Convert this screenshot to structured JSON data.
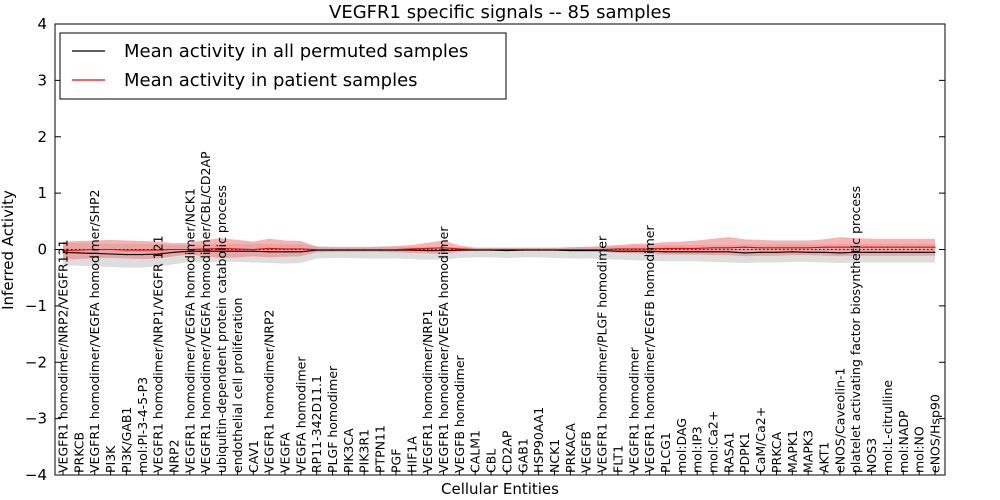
{
  "chart_data": {
    "type": "line",
    "title": "VEGFR1 specific signals -- 85 samples",
    "xlabel": "Cellular Entities",
    "ylabel": "Inferred Activity",
    "ylim": [
      -4,
      4
    ],
    "yticks": [
      -4,
      -3,
      -2,
      -1,
      0,
      1,
      2,
      3,
      4
    ],
    "reference_line": 0,
    "legend_position": "top-left",
    "categories": [
      "VEGFR1 homodimer/NRP2/VEGFR121",
      "PRKCB",
      "VEGFR1 homodimer/VEGFA homodimer/SHP2",
      "PI3K",
      "PI3K/GAB1",
      "mol:PI-3-4-5-P3",
      "VEGFR1 homodimer/NRP1/VEGFR 121",
      "NRP2",
      "VEGFR1 homodimer/VEGFA homodimer/NCK1",
      "VEGFR1 homodimer/VEGFA homodimer/CBL/CD2AP",
      "ubiquitin-dependent protein catabolic process",
      "endothelial cell proliferation",
      "CAV1",
      "VEGFR1 homodimer/NRP2",
      "VEGFA",
      "VEGFA homodimer",
      "RP11-342D11.1",
      "PLGF homodimer",
      "PIK3CA",
      "PIK3R1",
      "PTPN11",
      "PGF",
      "HIF1A",
      "VEGFR1 homodimer/NRP1",
      "VEGFR1 homodimer/VEGFA homodimer",
      "VEGFB homodimer",
      "CALM1",
      "CBL",
      "CD2AP",
      "GAB1",
      "HSP90AA1",
      "NCK1",
      "PRKACA",
      "VEGFB",
      "VEGFR1 homodimer/PLGF homodimer",
      "FLT1",
      "VEGFR1 homodimer",
      "VEGFR1 homodimer/VEGFB homodimer",
      "PLCG1",
      "mol:DAG",
      "mol:IP3",
      "mol:Ca2+",
      "RASA1",
      "PDPK1",
      "CaM/Ca2+",
      "PRKCA",
      "MAPK1",
      "MAPK3",
      "AKT1",
      "eNOS/Caveolin-1",
      "platelet activating factor biosynthetic process",
      "NOS3",
      "mol:L-citrulline",
      "mol:NADP",
      "mol:NO",
      "eNOS/Hsp90"
    ],
    "series": [
      {
        "name": "Mean activity in all permuted samples",
        "color": "#000000",
        "values": [
          -0.05,
          -0.06,
          -0.07,
          -0.08,
          -0.09,
          -0.09,
          -0.08,
          -0.05,
          -0.03,
          -0.03,
          -0.03,
          -0.03,
          -0.03,
          -0.04,
          -0.04,
          -0.04,
          -0.01,
          -0.01,
          -0.01,
          -0.01,
          -0.01,
          -0.01,
          -0.01,
          -0.02,
          -0.02,
          -0.01,
          -0.01,
          -0.01,
          -0.02,
          -0.01,
          -0.01,
          -0.01,
          -0.02,
          -0.02,
          -0.02,
          -0.03,
          -0.03,
          -0.03,
          -0.04,
          -0.04,
          -0.04,
          -0.04,
          -0.04,
          -0.06,
          -0.05,
          -0.05,
          -0.04,
          -0.05,
          -0.05,
          -0.06,
          -0.05,
          -0.05,
          -0.05,
          -0.05,
          -0.05,
          -0.05
        ],
        "band_low": [
          -0.28,
          -0.29,
          -0.3,
          -0.31,
          -0.32,
          -0.32,
          -0.3,
          -0.26,
          -0.22,
          -0.22,
          -0.22,
          -0.22,
          -0.23,
          -0.24,
          -0.25,
          -0.24,
          -0.16,
          -0.15,
          -0.15,
          -0.16,
          -0.16,
          -0.16,
          -0.17,
          -0.18,
          -0.18,
          -0.15,
          -0.14,
          -0.14,
          -0.15,
          -0.14,
          -0.14,
          -0.15,
          -0.16,
          -0.16,
          -0.17,
          -0.18,
          -0.19,
          -0.2,
          -0.21,
          -0.21,
          -0.21,
          -0.22,
          -0.23,
          -0.24,
          -0.23,
          -0.23,
          -0.22,
          -0.22,
          -0.23,
          -0.24,
          -0.23,
          -0.23,
          -0.23,
          -0.23,
          -0.23,
          -0.23
        ],
        "band_high": [
          0.12,
          0.12,
          0.11,
          0.1,
          0.1,
          0.1,
          0.1,
          0.08,
          0.08,
          0.09,
          0.1,
          0.1,
          0.1,
          0.1,
          0.09,
          0.09,
          0.06,
          0.05,
          0.05,
          0.05,
          0.05,
          0.05,
          0.05,
          0.05,
          0.05,
          0.04,
          0.03,
          0.03,
          0.03,
          0.03,
          0.03,
          0.03,
          0.04,
          0.04,
          0.05,
          0.06,
          0.07,
          0.07,
          0.08,
          0.08,
          0.08,
          0.08,
          0.08,
          0.09,
          0.09,
          0.09,
          0.09,
          0.09,
          0.09,
          0.1,
          0.1,
          0.1,
          0.1,
          0.1,
          0.1,
          0.1
        ]
      },
      {
        "name": "Mean activity in patient samples",
        "color": "#ff0000",
        "values": [
          -0.02,
          -0.01,
          0.0,
          0.0,
          -0.01,
          -0.01,
          -0.01,
          0.0,
          0.0,
          0.01,
          0.02,
          0.01,
          0.0,
          0.02,
          0.01,
          0.01,
          0.0,
          0.0,
          0.0,
          0.0,
          0.0,
          0.0,
          0.01,
          0.02,
          0.03,
          0.01,
          0.0,
          0.0,
          0.0,
          0.0,
          0.0,
          0.0,
          0.0,
          0.0,
          0.0,
          0.01,
          0.01,
          0.01,
          0.02,
          0.02,
          0.02,
          0.03,
          0.03,
          0.04,
          0.03,
          0.03,
          0.03,
          0.03,
          0.04,
          0.04,
          0.04,
          0.04,
          0.04,
          0.04,
          0.04,
          0.04
        ],
        "band_low": [
          -0.18,
          -0.17,
          -0.15,
          -0.15,
          -0.16,
          -0.17,
          -0.16,
          -0.12,
          -0.09,
          -0.12,
          -0.15,
          -0.14,
          -0.12,
          -0.14,
          -0.13,
          -0.12,
          -0.05,
          -0.04,
          -0.04,
          -0.04,
          -0.04,
          -0.05,
          -0.06,
          -0.07,
          -0.08,
          -0.04,
          -0.02,
          -0.02,
          -0.02,
          -0.02,
          -0.02,
          -0.02,
          -0.03,
          -0.03,
          -0.04,
          -0.06,
          -0.07,
          -0.08,
          -0.09,
          -0.09,
          -0.09,
          -0.1,
          -0.1,
          -0.12,
          -0.11,
          -0.11,
          -0.1,
          -0.1,
          -0.11,
          -0.12,
          -0.11,
          -0.11,
          -0.11,
          -0.11,
          -0.11,
          -0.11
        ],
        "band_high": [
          0.14,
          0.15,
          0.16,
          0.17,
          0.16,
          0.15,
          0.14,
          0.11,
          0.12,
          0.17,
          0.2,
          0.17,
          0.14,
          0.19,
          0.16,
          0.15,
          0.05,
          0.04,
          0.04,
          0.04,
          0.05,
          0.06,
          0.08,
          0.12,
          0.16,
          0.07,
          0.03,
          0.03,
          0.03,
          0.03,
          0.03,
          0.03,
          0.04,
          0.05,
          0.06,
          0.08,
          0.1,
          0.11,
          0.13,
          0.14,
          0.16,
          0.19,
          0.22,
          0.18,
          0.17,
          0.16,
          0.16,
          0.16,
          0.18,
          0.22,
          0.2,
          0.19,
          0.19,
          0.19,
          0.19,
          0.19
        ]
      }
    ]
  }
}
